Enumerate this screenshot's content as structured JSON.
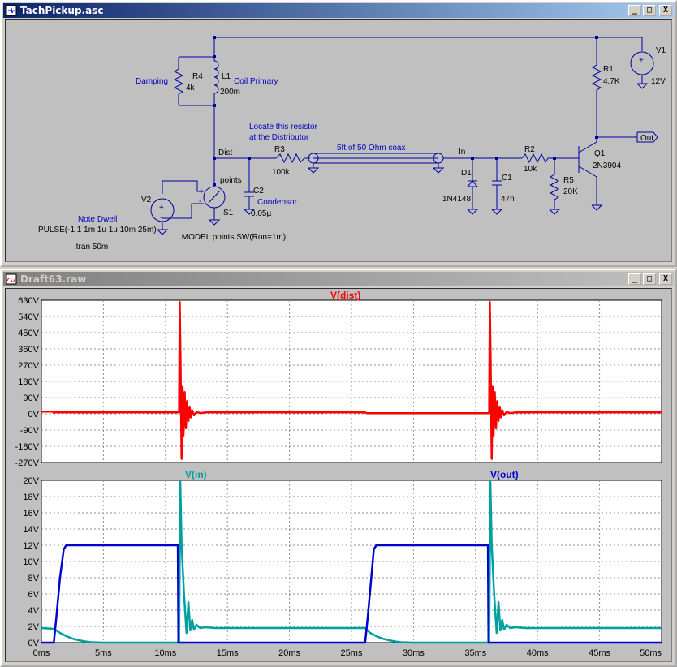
{
  "schematic_window": {
    "title": "TachPickup.asc",
    "buttons": {
      "minimize": "_",
      "maximize": "□",
      "close": "X"
    }
  },
  "schematic": {
    "net_dist": "Dist",
    "net_in": "In",
    "net_out": "Out",
    "r4": {
      "ref": "R4",
      "value": "4k",
      "note": "Damping"
    },
    "l1": {
      "ref": "L1",
      "value": "200m",
      "note": "Coil Primary"
    },
    "r3": {
      "ref": "R3",
      "value": "100k"
    },
    "r3_note1": "Locate this resistor",
    "r3_note2": "at the Distributor",
    "coax": "5ft of 50 Ohm coax",
    "c2": {
      "ref": "C2",
      "value": "0.05µ",
      "note": "Condensor"
    },
    "s1": {
      "ref": "S1",
      "label": "points"
    },
    "v2": {
      "ref": "V2",
      "note": "Note Dwell",
      "pulse": "PULSE(-1 1 1m 1u 1u 10m 25m)"
    },
    "tran": ".tran 50m",
    "model": ".MODEL points SW(Ron=1m)",
    "d1": {
      "ref": "D1",
      "value": "1N4148"
    },
    "c1": {
      "ref": "C1",
      "value": "47n"
    },
    "r2": {
      "ref": "R2",
      "value": "10k"
    },
    "r5": {
      "ref": "R5",
      "value": "20K"
    },
    "q1": {
      "ref": "Q1",
      "value": "2N3904"
    },
    "r1": {
      "ref": "R1",
      "value": "4.7K"
    },
    "v1": {
      "ref": "V1",
      "value": "12V"
    },
    "plus": "+",
    "minus": "-"
  },
  "waveform_window": {
    "title": "Draft63.raw",
    "buttons": {
      "minimize": "_",
      "maximize": "□",
      "close": "X"
    }
  },
  "chart_data": [
    {
      "type": "line",
      "title": "V(dist)",
      "x_unit": "ms",
      "y_unit": "V",
      "xlim": [
        0,
        50
      ],
      "ylim": [
        -270,
        630
      ],
      "y_ticks": [
        "630V",
        "540V",
        "450V",
        "360V",
        "270V",
        "180V",
        "90V",
        "0V",
        "-90V",
        "-180V",
        "-270V"
      ],
      "grid": true,
      "series": [
        {
          "name": "V(dist)",
          "color": "#ff0000",
          "x": [
            0,
            0.9,
            1.0,
            1.1,
            11.1,
            11.15,
            11.22,
            11.3,
            11.38,
            11.45,
            11.55,
            11.65,
            11.75,
            11.85,
            11.95,
            12.05,
            12.15,
            12.3,
            12.5,
            12.8,
            13.3,
            26.1,
            26.2,
            36.1,
            36.15,
            36.22,
            36.3,
            36.38,
            36.45,
            36.55,
            36.65,
            36.75,
            36.85,
            36.95,
            37.05,
            37.15,
            37.3,
            37.5,
            37.8,
            38.3,
            50
          ],
          "y": [
            12,
            12,
            5,
            8,
            8,
            620,
            300,
            -250,
            150,
            -120,
            120,
            -80,
            70,
            -40,
            40,
            -20,
            20,
            -8,
            10,
            4,
            8,
            8,
            3,
            3,
            620,
            300,
            -250,
            150,
            -120,
            120,
            -80,
            70,
            -40,
            40,
            -20,
            20,
            -8,
            10,
            4,
            8,
            8
          ]
        }
      ]
    },
    {
      "type": "line",
      "title": "",
      "x_unit": "ms",
      "y_unit": "V",
      "xlim": [
        0,
        50
      ],
      "ylim": [
        0,
        20
      ],
      "y_ticks": [
        "20V",
        "18V",
        "16V",
        "14V",
        "12V",
        "10V",
        "8V",
        "6V",
        "4V",
        "2V",
        "0V"
      ],
      "x_ticks": [
        "0ms",
        "5ms",
        "10ms",
        "15ms",
        "20ms",
        "25ms",
        "30ms",
        "35ms",
        "40ms",
        "45ms",
        "50ms"
      ],
      "grid": true,
      "series": [
        {
          "name": "V(in)",
          "color": "#00a0a0",
          "x": [
            0,
            1.0,
            1.5,
            2.0,
            2.5,
            3.0,
            3.5,
            4.0,
            5.0,
            11.1,
            11.2,
            11.3,
            11.5,
            11.7,
            11.85,
            12.0,
            12.15,
            12.3,
            12.5,
            12.8,
            13.2,
            14,
            26.1,
            26.5,
            27.0,
            27.5,
            28.0,
            28.5,
            29.0,
            30.0,
            36.1,
            36.2,
            36.3,
            36.5,
            36.7,
            36.85,
            37.0,
            37.15,
            37.3,
            37.5,
            37.8,
            38.2,
            39,
            50
          ],
          "y": [
            1.8,
            1.7,
            1.2,
            0.8,
            0.5,
            0.3,
            0.15,
            0.05,
            0,
            0,
            19.8,
            12,
            6,
            1.2,
            5,
            1.5,
            2.8,
            1.6,
            2.2,
            1.8,
            1.9,
            1.8,
            1.8,
            1.2,
            0.8,
            0.5,
            0.3,
            0.15,
            0.05,
            0,
            0,
            19.8,
            12,
            6,
            1.2,
            5,
            1.5,
            2.8,
            1.6,
            2.2,
            1.8,
            1.9,
            1.8,
            1.8
          ]
        },
        {
          "name": "V(out)",
          "color": "#0000d0",
          "x": [
            0,
            1.0,
            1.2,
            1.5,
            1.8,
            2.0,
            11.0,
            11.05,
            26.1,
            26.3,
            26.6,
            26.8,
            27.0,
            36.0,
            36.05,
            50
          ],
          "y": [
            0,
            0,
            3,
            8,
            11.5,
            12,
            12,
            0,
            0,
            3,
            8,
            11.5,
            12,
            12,
            0,
            0
          ]
        }
      ]
    }
  ]
}
